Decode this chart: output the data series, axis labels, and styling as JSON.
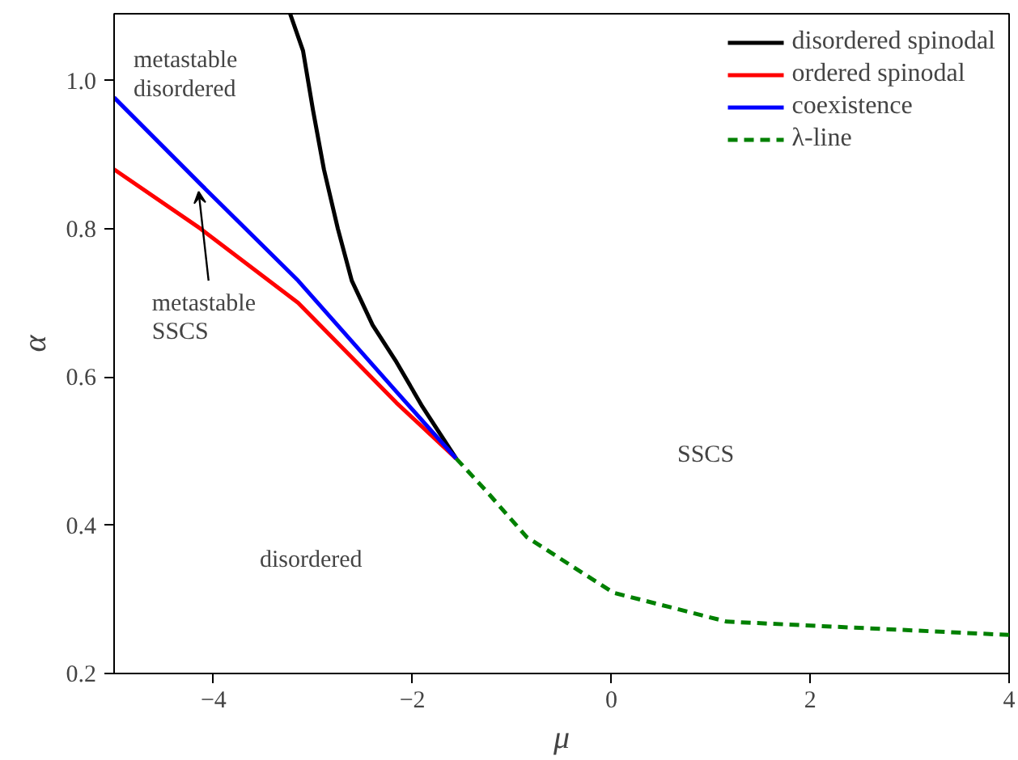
{
  "chart_data": {
    "type": "line",
    "xlabel": "μ",
    "ylabel": "α",
    "xlim": [
      -5,
      4
    ],
    "ylim": [
      0.2,
      1.09
    ],
    "xticks": [
      {
        "value": -4,
        "label": "−4"
      },
      {
        "value": -2,
        "label": "−2"
      },
      0,
      2,
      4
    ],
    "yticks": [
      {
        "value": 0.2,
        "label": "0.2"
      },
      {
        "value": 0.4,
        "label": "0.4"
      },
      {
        "value": 0.6,
        "label": "0.6"
      },
      {
        "value": 0.8,
        "label": "0.8"
      },
      {
        "value": 1.0,
        "label": "1.0"
      }
    ],
    "grid": false,
    "legend": "top right",
    "series": [
      {
        "name": "disordered spinodal",
        "color": "#000000",
        "line_style": "solid",
        "x": [
          -3.23,
          -3.1,
          -3.0,
          -2.89,
          -2.75,
          -2.61,
          -2.4,
          -2.16,
          -1.9,
          -1.56
        ],
        "values": [
          1.09,
          1.04,
          0.96,
          0.88,
          0.8,
          0.73,
          0.67,
          0.62,
          0.56,
          0.49
        ]
      },
      {
        "name": "ordered spinodal",
        "color": "#ff0000",
        "line_style": "solid",
        "x": [
          -5,
          -4.13,
          -3.15,
          -2.16,
          -1.56
        ],
        "values": [
          0.88,
          0.8,
          0.7,
          0.565,
          0.49
        ]
      },
      {
        "name": "coexistence",
        "color": "#0000ff",
        "line_style": "solid",
        "x": [
          -5,
          -4.13,
          -3.15,
          -2.16,
          -1.56
        ],
        "values": [
          0.977,
          0.86,
          0.73,
          0.58,
          0.49
        ]
      },
      {
        "name": "λ-line",
        "color": "#008000",
        "line_style": "dashed",
        "x": [
          -1.56,
          -1.25,
          -0.85,
          0.02,
          1.16,
          2.26,
          4
        ],
        "values": [
          0.49,
          0.445,
          0.384,
          0.309,
          0.27,
          0.263,
          0.252
        ]
      }
    ],
    "annotations": [
      "metastable\ndisordered",
      {
        "text": "metastable\nSSCS",
        "x": -4.15,
        "y": 0.85
      },
      "SSCS",
      "disordered"
    ]
  }
}
